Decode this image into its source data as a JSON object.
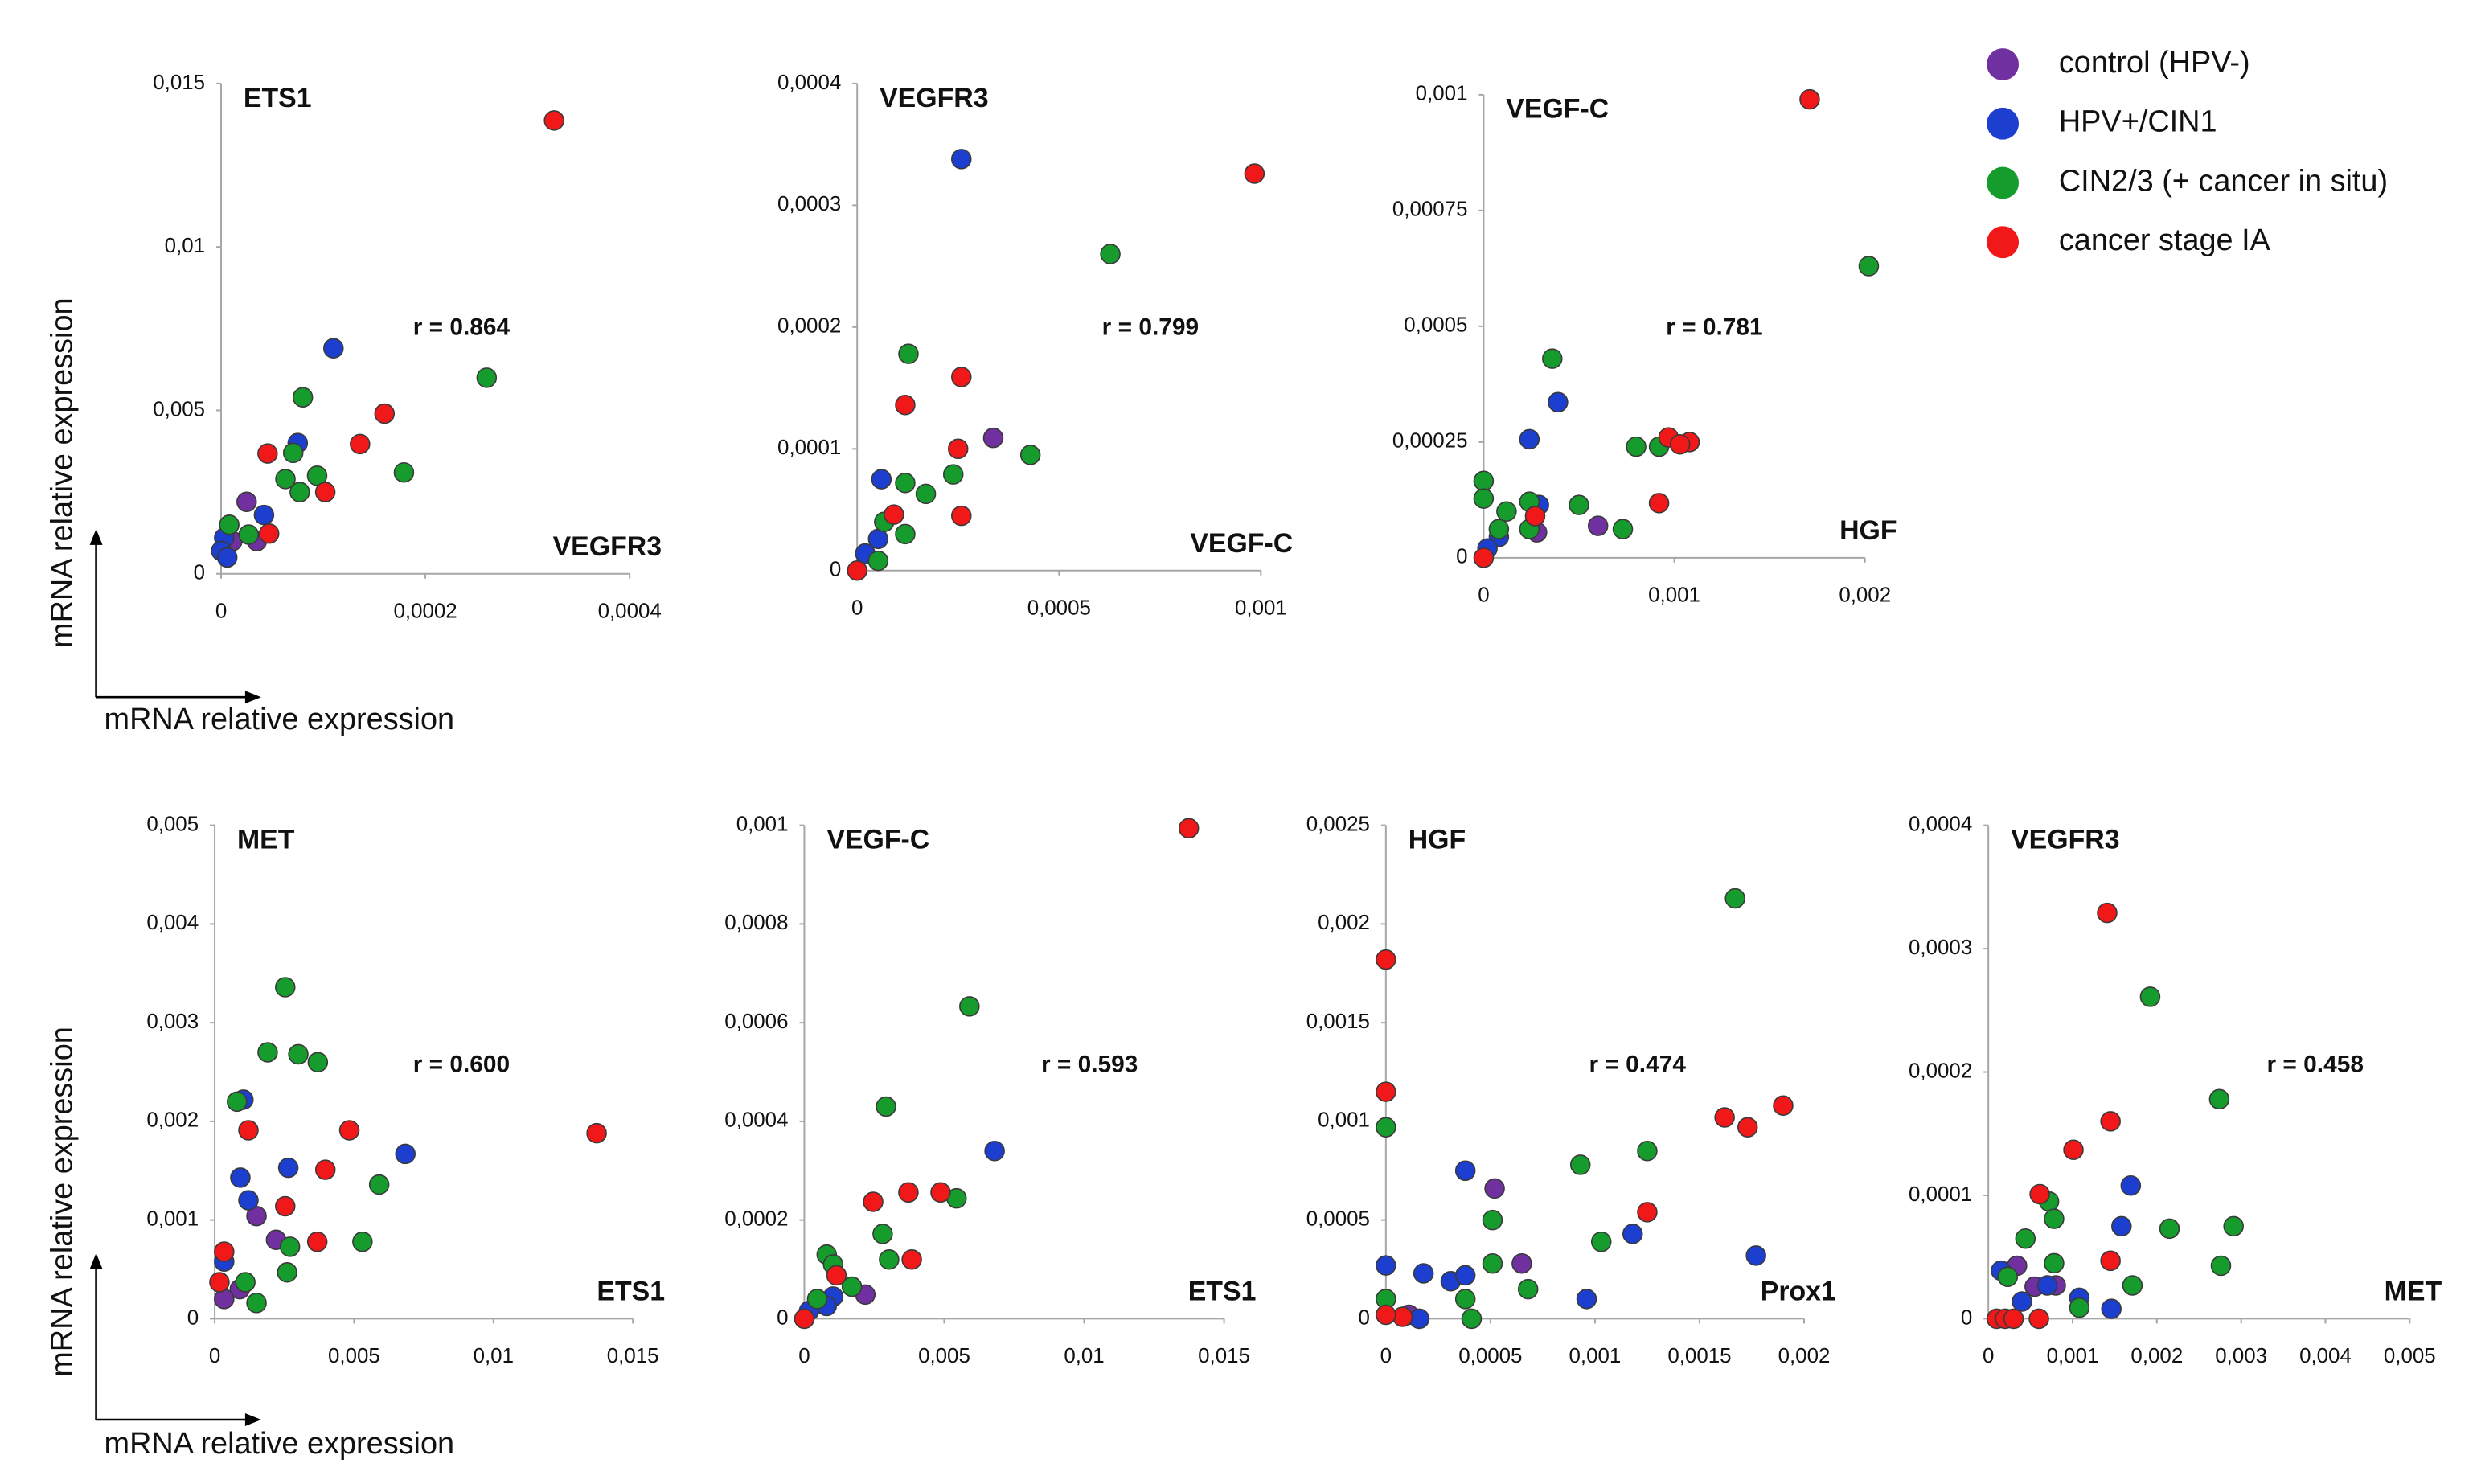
{
  "corner_axes": [
    {
      "x_label": "mRNA  relative expression",
      "y_label": "mRNA  relative expression"
    },
    {
      "x_label": "mRNA  relative expression",
      "y_label": "mRNA  relative expression"
    }
  ],
  "chart_data": [
    {
      "type": "scatter",
      "ylabel": "ETS1",
      "xlabel": "VEGFR3",
      "annotation": "r = 0.864",
      "xlim": [
        0,
        0.0004
      ],
      "ylim": [
        0,
        0.015
      ],
      "xticks": [
        0,
        {
          "value": 0.0002,
          "label": "0,0002"
        },
        {
          "value": 0.0004,
          "label": "0,0004"
        }
      ],
      "yticks": [
        0,
        {
          "value": 0.005,
          "label": "0,005"
        },
        {
          "value": 0.01,
          "label": "0,01"
        },
        {
          "value": 0.015,
          "label": "0,015"
        }
      ],
      "series": [
        {
          "name": "control (HPV-)",
          "color": "#7030a0",
          "x": [
            2.5e-05,
            3.5e-05,
            1.1e-05
          ],
          "values": [
            0.0022,
            0.001,
            0.001
          ]
        },
        {
          "name": "HPV+/CIN1",
          "color": "#1c3fd0",
          "x": [
            0.00011,
            7.5e-05,
            4.2e-05,
            3e-06,
            0,
            6e-06
          ],
          "values": [
            0.0069,
            0.004,
            0.0018,
            0.0011,
            0.0007,
            0.0005
          ]
        },
        {
          "name": "CIN2/3 (+ cancer in situ)",
          "color": "#169c2c",
          "x": [
            0.00026,
            0.000179,
            8e-05,
            7.06e-05,
            9.4e-05,
            7.7e-05,
            6.3e-05,
            2.7e-05,
            8e-06
          ],
          "values": [
            0.006,
            0.0031,
            0.0054,
            0.0037,
            0.003,
            0.0025,
            0.0029,
            0.0012,
            0.0015
          ]
        },
        {
          "name": "cancer stage IA",
          "color": "#f01818",
          "x": [
            0.000326,
            0.00016,
            0.000136,
            0.000102,
            4.55e-05,
            4.7e-05
          ],
          "values": [
            0.01387,
            0.0049,
            0.00397,
            0.0025,
            0.00368,
            0.00123
          ]
        }
      ]
    },
    {
      "type": "scatter",
      "ylabel": "VEGFR3",
      "xlabel": "VEGF-C",
      "annotation": "r = 0.799",
      "xlim": [
        0,
        0.001
      ],
      "ylim": [
        0,
        0.0004
      ],
      "xticks": [
        0,
        {
          "value": 0.0005,
          "label": "0,0005"
        },
        {
          "value": 0.001,
          "label": "0,001"
        }
      ],
      "yticks": [
        0,
        {
          "value": 0.0001,
          "label": "0,0001"
        },
        {
          "value": 0.0002,
          "label": "0,0002"
        },
        {
          "value": 0.0003,
          "label": "0,0003"
        },
        {
          "value": 0.0004,
          "label": "0,0004"
        }
      ],
      "series": [
        {
          "name": "control (HPV-)",
          "color": "#7030a0",
          "x": [
            0.000337
          ],
          "values": [
            0.000109
          ]
        },
        {
          "name": "HPV+/CIN1",
          "color": "#1c3fd0",
          "x": [
            0.000258,
            6e-05,
            5.2e-05,
            2e-05
          ],
          "values": [
            0.000338,
            7.5e-05,
            2.6e-05,
            1.4e-05
          ]
        },
        {
          "name": "CIN2/3 (+ cancer in situ)",
          "color": "#169c2c",
          "x": [
            0.000627,
            0.000127,
            0.000429,
            0.000238,
            0.000119,
            0.00017,
            6.7e-05,
            0.000119,
            5.2e-05
          ],
          "values": [
            0.00026,
            0.000178,
            9.5e-05,
            7.9e-05,
            7.2e-05,
            6.3e-05,
            4e-05,
            3e-05,
            8e-06
          ]
        },
        {
          "name": "cancer stage IA",
          "color": "#f01818",
          "x": [
            0.000984,
            0.000258,
            0.000119,
            0.00025,
            0.000258,
            9.1e-05,
            0
          ],
          "values": [
            0.000326,
            0.000159,
            0.000136,
            0.0001,
            4.5e-05,
            4.6e-05,
            0
          ]
        }
      ]
    },
    {
      "type": "scatter",
      "ylabel": "VEGF-C",
      "xlabel": "HGF",
      "annotation": "r = 0.781",
      "xlim": [
        0,
        0.002
      ],
      "ylim": [
        0,
        0.001
      ],
      "xticks": [
        0,
        {
          "value": 0.001,
          "label": "0,001"
        },
        {
          "value": 0.002,
          "label": "0,002"
        }
      ],
      "yticks": [
        0,
        {
          "value": 0.00025,
          "label": "0,00025"
        },
        {
          "value": 0.0005,
          "label": "0,0005"
        },
        {
          "value": 0.00075,
          "label": "0,00075"
        },
        {
          "value": 0.001,
          "label": "0,001"
        }
      ],
      "series": [
        {
          "name": "control (HPV-)",
          "color": "#7030a0",
          "x": [
            0.0006,
            0.00028
          ],
          "values": [
            6.9e-05,
            5.5e-05
          ]
        },
        {
          "name": "HPV+/CIN1",
          "color": "#1c3fd0",
          "x": [
            0.00039,
            0.00024,
            0.00029,
            8e-05,
            2e-05
          ],
          "values": [
            0.000336,
            0.000256,
            0.000114,
            4.5e-05,
            2e-05
          ]
        },
        {
          "name": "CIN2/3 (+ cancer in situ)",
          "color": "#169c2c",
          "x": [
            0.00202,
            0.00036,
            0.0008,
            0.00092,
            0,
            0,
            0.00012,
            0.00024,
            0.00024,
            0.0005,
            0.00073,
            8e-05
          ],
          "values": [
            0.00063,
            0.00043,
            0.00024,
            0.00024,
            0.000166,
            0.000128,
            0.0001,
            0.000121,
            6.2e-05,
            0.000114,
            6.2e-05,
            6.2e-05
          ]
        },
        {
          "name": "cancer stage IA",
          "color": "#f01818",
          "x": [
            0.00171,
            0.00097,
            0.00108,
            0.00103,
            0.00092,
            0.00027,
            0
          ],
          "values": [
            0.00099,
            0.00026,
            0.00025,
            0.000245,
            0.000118,
            9e-05,
            0
          ]
        }
      ]
    },
    {
      "type": "scatter",
      "ylabel": "MET",
      "xlabel": "ETS1",
      "annotation": "r = 0.600",
      "xlim": [
        0,
        0.015
      ],
      "ylim": [
        0,
        0.005
      ],
      "xticks": [
        0,
        {
          "value": 0.005,
          "label": "0,005"
        },
        {
          "value": 0.01,
          "label": "0,01"
        },
        {
          "value": 0.015,
          "label": "0,015"
        }
      ],
      "yticks": [
        0,
        {
          "value": 0.001,
          "label": "0,001"
        },
        {
          "value": 0.002,
          "label": "0,002"
        },
        {
          "value": 0.003,
          "label": "0,003"
        },
        {
          "value": 0.004,
          "label": "0,004"
        },
        {
          "value": 0.005,
          "label": "0,005"
        }
      ],
      "series": [
        {
          "name": "control (HPV-)",
          "color": "#7030a0",
          "x": [
            0.0015,
            0.0022,
            0.0009,
            0.00034
          ],
          "values": [
            0.00104,
            0.0008,
            0.0003,
            0.0002
          ]
        },
        {
          "name": "HPV+/CIN1",
          "color": "#1c3fd0",
          "x": [
            0.00684,
            0.00264,
            0.00103,
            0.00092,
            0.00121,
            0.00034
          ],
          "values": [
            0.00167,
            0.00153,
            0.00222,
            0.00143,
            0.0012,
            0.00058
          ]
        },
        {
          "name": "CIN2/3 (+ cancer in situ)",
          "color": "#169c2c",
          "x": [
            0.00253,
            0.0019,
            0.003,
            0.0037,
            0.0008,
            0.0059,
            0.0053,
            0.0027,
            0.0026,
            0.0011,
            0.0015
          ],
          "values": [
            0.00336,
            0.0027,
            0.00268,
            0.0026,
            0.0022,
            0.00136,
            0.00078,
            0.00073,
            0.00047,
            0.00037,
            0.00016
          ]
        },
        {
          "name": "cancer stage IA",
          "color": "#f01818",
          "x": [
            0.0137,
            0.00483,
            0.00397,
            0.00368,
            0.00253,
            0.00121,
            0.00034,
            0.00017
          ],
          "values": [
            0.00188,
            0.00191,
            0.00151,
            0.00078,
            0.00114,
            0.00191,
            0.00068,
            0.00037
          ]
        }
      ]
    },
    {
      "type": "scatter",
      "ylabel": "VEGF-C",
      "xlabel": "ETS1",
      "annotation": "r = 0.593",
      "xlim": [
        0,
        0.015
      ],
      "ylim": [
        0,
        0.001
      ],
      "xticks": [
        0,
        {
          "value": 0.005,
          "label": "0,005"
        },
        {
          "value": 0.01,
          "label": "0,01"
        },
        {
          "value": 0.015,
          "label": "0,015"
        }
      ],
      "yticks": [
        0,
        {
          "value": 0.0002,
          "label": "0,0002"
        },
        {
          "value": 0.0004,
          "label": "0,0004"
        },
        {
          "value": 0.0006,
          "label": "0,0006"
        },
        {
          "value": 0.0008,
          "label": "0,0008"
        },
        {
          "value": 0.001,
          "label": "0,001"
        }
      ],
      "series": [
        {
          "name": "control (HPV-)",
          "color": "#7030a0",
          "x": [
            0.00218,
            0.00057
          ],
          "values": [
            4.9e-05,
            3e-05
          ]
        },
        {
          "name": "HPV+/CIN1",
          "color": "#1c3fd0",
          "x": [
            0.0068,
            0.00103,
            0.0008,
            0.00017
          ],
          "values": [
            0.00034,
            4.5e-05,
            2.6e-05,
            1.6e-05
          ]
        },
        {
          "name": "CIN2/3 (+ cancer in situ)",
          "color": "#169c2c",
          "x": [
            0.0059,
            0.00292,
            0.00544,
            0.0028,
            0.00303,
            0.0008,
            0.00103,
            0.0017,
            0.00046
          ],
          "values": [
            0.000633,
            0.00043,
            0.000244,
            0.000172,
            0.00012,
            0.00013,
            0.00011,
            6.5e-05,
            4e-05
          ]
        },
        {
          "name": "cancer stage IA",
          "color": "#f01818",
          "x": [
            0.01374,
            0.00487,
            0.00372,
            0.00384,
            0.00246,
            0.00115,
            0
          ],
          "values": [
            0.000994,
            0.000256,
            0.000256,
            0.00012,
            0.000237,
            8.8e-05,
            0
          ]
        }
      ]
    },
    {
      "type": "scatter",
      "ylabel": "HGF",
      "xlabel": "Prox1",
      "annotation": "r = 0.474",
      "xlim": [
        0,
        0.002
      ],
      "ylim": [
        0,
        0.0025
      ],
      "xticks": [
        0,
        {
          "value": 0.0005,
          "label": "0,0005"
        },
        {
          "value": 0.001,
          "label": "0,001"
        },
        {
          "value": 0.0015,
          "label": "0,0015"
        },
        {
          "value": 0.002,
          "label": "0,002"
        }
      ],
      "yticks": [
        0,
        {
          "value": 0.0005,
          "label": "0,0005"
        },
        {
          "value": 0.001,
          "label": "0,001"
        },
        {
          "value": 0.0015,
          "label": "0,0015"
        },
        {
          "value": 0.002,
          "label": "0,002"
        },
        {
          "value": 0.0025,
          "label": "0,0025"
        }
      ],
      "series": [
        {
          "name": "control (HPV-)",
          "color": "#7030a0",
          "x": [
            0.00052,
            0.00065,
            0.00011
          ],
          "values": [
            0.00066,
            0.00028,
            2e-05
          ]
        },
        {
          "name": "HPV+/CIN1",
          "color": "#1c3fd0",
          "x": [
            0.00038,
            0.00177,
            0.00118,
            0,
            0.00018,
            0.00031,
            0.00038,
            0.00096,
            0.00016
          ],
          "values": [
            0.00075,
            0.00032,
            0.00043,
            0.00027,
            0.00023,
            0.00019,
            0.00022,
            0.0001,
            0
          ]
        },
        {
          "name": "CIN2/3 (+ cancer in situ)",
          "color": "#169c2c",
          "x": [
            0.00167,
            0,
            0.00093,
            0.00125,
            0.00103,
            0.00051,
            0.00038,
            0.00041,
            0.00051,
            0.00068,
            0
          ],
          "values": [
            0.00213,
            0.00097,
            0.00078,
            0.00085,
            0.00039,
            0.0005,
            0.0001,
            0,
            0.00028,
            0.00015,
            0.0001
          ]
        },
        {
          "name": "cancer stage IA",
          "color": "#f01818",
          "x": [
            0,
            0,
            0.00162,
            0.00173,
            0.0019,
            0.00125,
            8e-05,
            0
          ],
          "values": [
            0.00182,
            0.00115,
            0.00102,
            0.00097,
            0.00108,
            0.00054,
            1e-05,
            2e-05
          ]
        }
      ]
    },
    {
      "type": "scatter",
      "ylabel": "VEGFR3",
      "xlabel": "MET",
      "annotation": "r = 0.458",
      "xlim": [
        0,
        0.005
      ],
      "ylim": [
        0,
        0.0004
      ],
      "xticks": [
        0,
        {
          "value": 0.001,
          "label": "0,001"
        },
        {
          "value": 0.002,
          "label": "0,002"
        },
        {
          "value": 0.003,
          "label": "0,003"
        },
        {
          "value": 0.004,
          "label": "0,004"
        },
        {
          "value": 0.005,
          "label": "0,005"
        }
      ],
      "yticks": [
        0,
        {
          "value": 0.0001,
          "label": "0,0001"
        },
        {
          "value": 0.0002,
          "label": "0,0002"
        },
        {
          "value": 0.0003,
          "label": "0,0003"
        },
        {
          "value": 0.0004,
          "label": "0,0004"
        }
      ],
      "series": [
        {
          "name": "control (HPV-)",
          "color": "#7030a0",
          "x": [
            0.00034,
            0.0008,
            0.00055
          ],
          "values": [
            4.3e-05,
            2.7e-05,
            2.6e-05
          ]
        },
        {
          "name": "HPV+/CIN1",
          "color": "#1c3fd0",
          "x": [
            0.00169,
            0.00158,
            0.0007,
            0.00015,
            0.00108,
            0.00146,
            0.0004
          ],
          "values": [
            0.000108,
            7.5e-05,
            2.7e-05,
            3.9e-05,
            1.7e-05,
            8e-06,
            1.4e-05
          ]
        },
        {
          "name": "CIN2/3 (+ cancer in situ)",
          "color": "#169c2c",
          "x": [
            0.00192,
            0.00274,
            0.00291,
            0.00215,
            0.00276,
            0.00171,
            0.00072,
            0.00078,
            0.00044,
            0.00023,
            0.00078,
            0.00108
          ],
          "values": [
            0.000261,
            0.000178,
            7.5e-05,
            7.3e-05,
            4.3e-05,
            2.7e-05,
            9.5e-05,
            8.1e-05,
            6.5e-05,
            3.4e-05,
            4.5e-05,
            9e-06
          ]
        },
        {
          "name": "cancer stage IA",
          "color": "#f01818",
          "x": [
            0.00141,
            0.00145,
            0.00101,
            0.00061,
            0.00145,
            0.0001,
            0.0002,
            0.0003,
            0.0006
          ],
          "values": [
            0.000329,
            0.00016,
            0.000137,
            0.000101,
            4.7e-05,
            0,
            0,
            0,
            0
          ]
        }
      ]
    }
  ]
}
